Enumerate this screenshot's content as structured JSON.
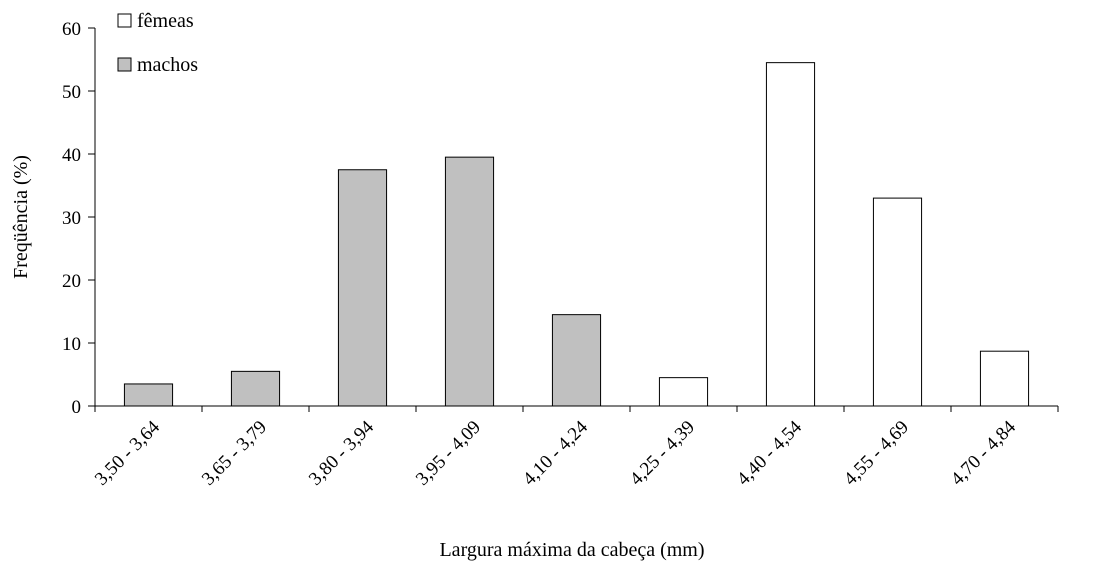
{
  "chart_data": {
    "type": "bar",
    "title": "",
    "xlabel": "Largura máxima da cabeça (mm)",
    "ylabel": "Freqüência (%)",
    "ylim": [
      0,
      60
    ],
    "yticks": [
      0,
      10,
      20,
      30,
      40,
      50,
      60
    ],
    "grid": false,
    "legend_position": "top-left",
    "categories": [
      "3,50 - 3,64",
      "3,65 - 3,79",
      "3,80 - 3,94",
      "3,95 - 4,09",
      "4,10 - 4,24",
      "4,25 - 4,39",
      "4,40 - 4,54",
      "4,55 - 4,69",
      "4,70 - 4,84"
    ],
    "series": [
      {
        "name": "machos",
        "color": "#c0c0c0",
        "values": [
          3.5,
          5.5,
          37.5,
          39.5,
          14.5,
          null,
          null,
          null,
          null
        ]
      },
      {
        "name": "fêmeas",
        "color": "#ffffff",
        "values": [
          null,
          null,
          null,
          null,
          null,
          4.5,
          54.5,
          33,
          8.7
        ]
      }
    ]
  }
}
